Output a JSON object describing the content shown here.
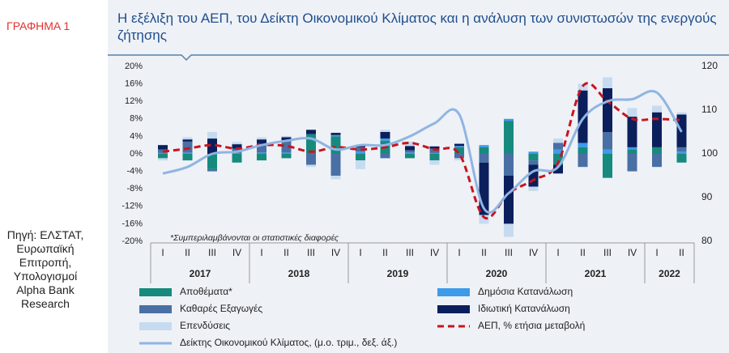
{
  "figure_label": "ΓΡΑΦΗΜΑ 1",
  "source": "Πηγή: ΕΛΣΤΑΤ, Ευρωπαϊκή Επιτροπή, Υπολογισμοί Alpha Bank Research",
  "chart_data": {
    "type": "bar",
    "title": "Η εξέλιξη του ΑΕΠ, του Δείκτη Οικονομικού Κλίματος και η ανάλυση των συνιστωσών της ενεργούς ζήτησης",
    "annotation": "*Συμπεριλαμβάνονται οι στατιστικές διαφορές",
    "categories": [
      "I",
      "II",
      "III",
      "IV",
      "I",
      "II",
      "III",
      "IV",
      "I",
      "II",
      "III",
      "IV",
      "I",
      "II",
      "III",
      "IV",
      "I",
      "II",
      "III",
      "IV",
      "I",
      "II"
    ],
    "years": [
      "2017",
      "2018",
      "2019",
      "2020",
      "2021",
      "2022"
    ],
    "ylim": [
      -20,
      20
    ],
    "yticks": [
      {
        "value": -20,
        "label": "-20%"
      },
      {
        "value": -16,
        "label": "-16%"
      },
      {
        "value": -12,
        "label": "-12%"
      },
      {
        "value": -8,
        "label": "-8%"
      },
      {
        "value": -4,
        "label": "-4%"
      },
      {
        "value": 0,
        "label": "0%"
      },
      {
        "value": 4,
        "label": "4%"
      },
      {
        "value": 8,
        "label": "8%"
      },
      {
        "value": 12,
        "label": "12%"
      },
      {
        "value": 16,
        "label": "16%"
      },
      {
        "value": 20,
        "label": "20%"
      }
    ],
    "y2lim": [
      80,
      120
    ],
    "y2ticks": [
      80,
      90,
      100,
      110,
      120
    ],
    "series": [
      {
        "name": "Αποθέματα*",
        "type": "bar",
        "color": "#178a7e",
        "values": [
          -1.0,
          -1.5,
          -3.5,
          -2.0,
          -1.5,
          -1.0,
          4.5,
          4.0,
          -1.5,
          3.0,
          -1.0,
          -1.5,
          1.5,
          1.5,
          7.5,
          -1.5,
          -2.5,
          1.5,
          -5.5,
          1.0,
          1.5,
          -2.0
        ]
      },
      {
        "name": "Δημόσια Κατανάλωση",
        "type": "bar",
        "color": "#3d9be9",
        "values": [
          0.2,
          0.3,
          0.0,
          0.2,
          0.3,
          0.3,
          0.0,
          0.3,
          0.5,
          0.5,
          0.3,
          0.2,
          0.3,
          0.5,
          0.5,
          0.5,
          1.0,
          1.0,
          1.0,
          0.5,
          0.0,
          0.5
        ]
      },
      {
        "name": "Καθαρές Εξαγωγές",
        "type": "bar",
        "color": "#4a6fa5",
        "values": [
          0.8,
          2.5,
          -0.5,
          1.0,
          2.0,
          2.5,
          -2.5,
          -5.0,
          1.0,
          -1.0,
          0.5,
          1.0,
          -1.0,
          -2.0,
          -5.0,
          -1.0,
          1.5,
          -3.0,
          4.0,
          -4.0,
          -3.0,
          1.0
        ]
      },
      {
        "name": "Ιδιωτική Κατανάλωση",
        "type": "bar",
        "color": "#0b1f5c",
        "values": [
          1.0,
          0.5,
          3.5,
          1.0,
          1.0,
          1.0,
          1.0,
          0.5,
          0.5,
          1.5,
          1.0,
          0.5,
          0.5,
          -12.0,
          -11.0,
          -5.0,
          -2.0,
          12.0,
          10.0,
          7.0,
          8.0,
          7.5
        ]
      },
      {
        "name": "Επενδύσεις",
        "type": "bar",
        "color": "#c6dbf0",
        "values": [
          -0.5,
          0.5,
          1.5,
          0.5,
          0.5,
          0.3,
          -0.5,
          -0.8,
          -2.0,
          0.5,
          1.0,
          -1.0,
          -0.5,
          -2.0,
          -3.0,
          -1.0,
          1.0,
          1.5,
          2.5,
          2.0,
          1.5,
          0.5
        ]
      },
      {
        "name": "ΑΕΠ, % ετήσια μεταβολή",
        "type": "line",
        "style": "dashed",
        "color": "#c8141e",
        "values": [
          0.5,
          1.2,
          2.0,
          1.2,
          2.0,
          1.8,
          0.5,
          1.5,
          1.0,
          1.5,
          2.5,
          1.0,
          0.0,
          -14.5,
          -9.0,
          -6.0,
          -2.0,
          15.5,
          12.0,
          8.0,
          8.0,
          7.7
        ]
      },
      {
        "name": "Δείκτης Οικονομικού Κλίματος, (μ.ο. τριμ., δεξ. άξ.)",
        "type": "line",
        "style": "solid",
        "axis": "y2",
        "color": "#8fb5e2",
        "values": [
          95.5,
          97,
          100,
          100.5,
          102,
          103,
          103.5,
          101,
          102,
          102,
          104,
          107,
          109,
          87.5,
          91,
          96,
          97,
          108,
          112,
          112.5,
          114,
          105
        ]
      }
    ]
  }
}
